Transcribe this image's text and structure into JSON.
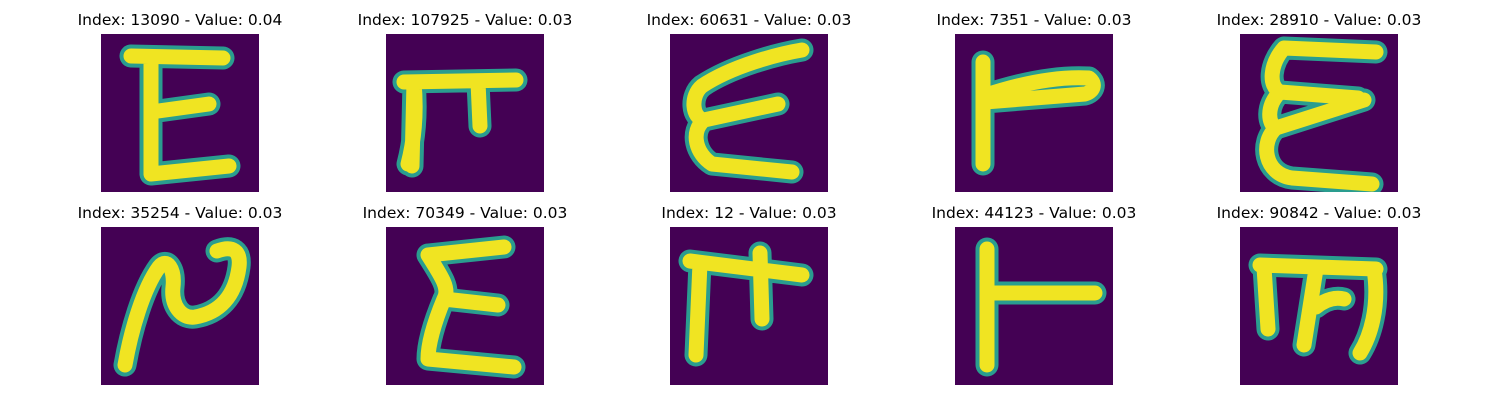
{
  "figure": {
    "panels": [
      {
        "title": "Index: 13090 - Value: 0.04",
        "glyph": "letter-E-glyph"
      },
      {
        "title": "Index: 107925 - Value: 0.03",
        "glyph": "letter-F-glyph"
      },
      {
        "title": "Index: 60631 - Value: 0.03",
        "glyph": "letter-E-glyph"
      },
      {
        "title": "Index: 7351 - Value: 0.03",
        "glyph": "letter-F-glyph"
      },
      {
        "title": "Index: 28910 - Value: 0.03",
        "glyph": "letter-E-glyph"
      },
      {
        "title": "Index: 35254 - Value: 0.03",
        "glyph": "letter-N-glyph"
      },
      {
        "title": "Index: 70349 - Value: 0.03",
        "glyph": "letter-E-glyph"
      },
      {
        "title": "Index: 12 - Value: 0.03",
        "glyph": "letter-F-glyph"
      },
      {
        "title": "Index: 44123 - Value: 0.03",
        "glyph": "letter-F-glyph"
      },
      {
        "title": "Index: 90842 - Value: 0.03",
        "glyph": "letter-M-glyph"
      }
    ]
  },
  "colors": {
    "background": "#440154",
    "stroke_core": "#f0e422",
    "stroke_edge": "#2a9d8f",
    "page": "#ffffff",
    "title_text": "#000000"
  }
}
